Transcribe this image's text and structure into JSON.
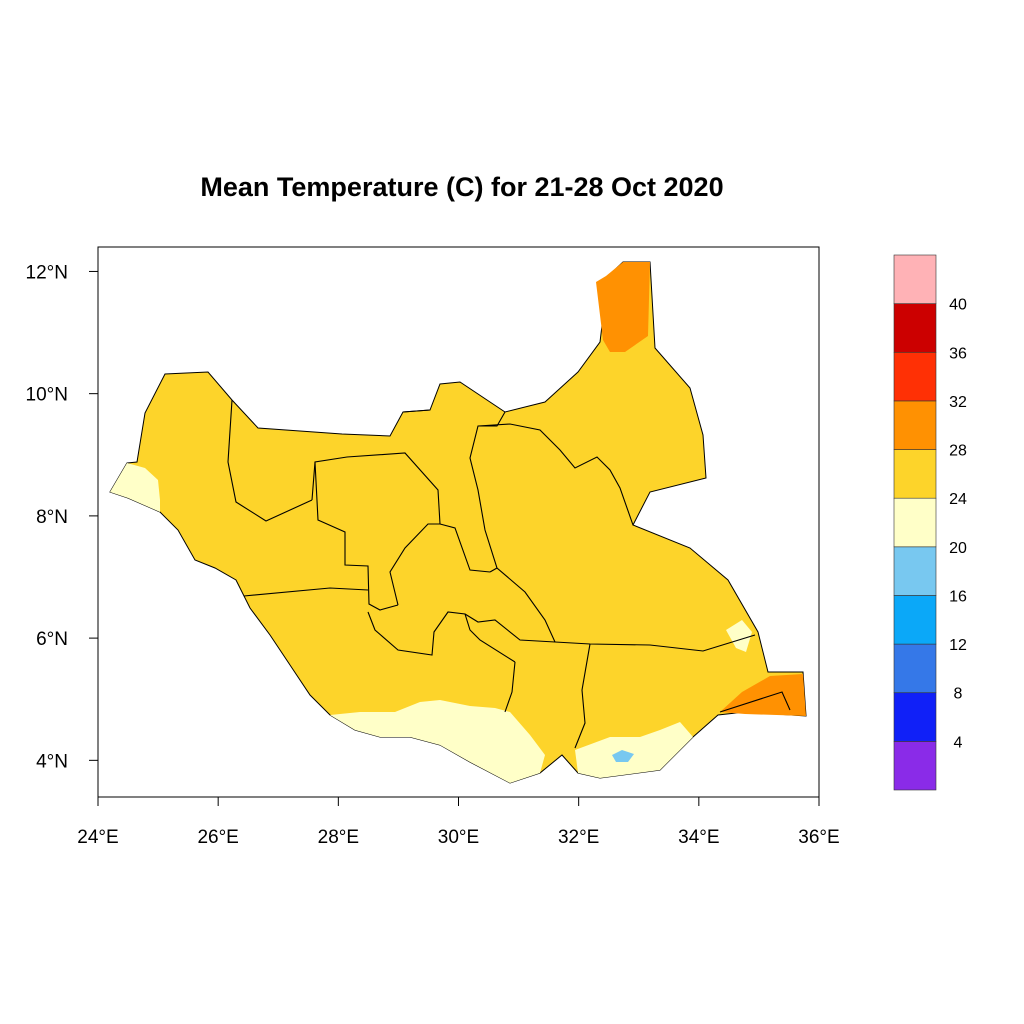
{
  "title": "Mean Temperature (C) for 21-28 Oct 2020",
  "map": {
    "region_shown": "South Sudan",
    "xlim": [
      24,
      36
    ],
    "ylim": [
      3.4,
      12.4
    ],
    "x_ticks": [
      "24°E",
      "26°E",
      "28°E",
      "30°E",
      "32°E",
      "34°E",
      "36°E"
    ],
    "y_ticks": [
      "4°N",
      "6°N",
      "8°N",
      "10°N",
      "12°N"
    ],
    "dominant_class": "24-28",
    "features": [
      {
        "class": "28-32",
        "location": "far north tip (Upper Nile)"
      },
      {
        "class": "28-32",
        "location": "far southeast corner (Ilemi triangle)"
      },
      {
        "class": "20-24",
        "location": "western tip and southern border strip"
      },
      {
        "class": "16-20",
        "location": "small patch near 32.8°E, 4°N"
      }
    ]
  },
  "legend": {
    "labels": [
      "4",
      "8",
      "12",
      "16",
      "20",
      "24",
      "28",
      "32",
      "36",
      "40"
    ],
    "colors": [
      "#8A2BE8",
      "#1020F8",
      "#3578E8",
      "#0BA8F8",
      "#78C8F0",
      "#FFFFC8",
      "#FDD42A",
      "#FF9102",
      "#FF3005",
      "#CC0000",
      "#FFB2B6"
    ]
  }
}
